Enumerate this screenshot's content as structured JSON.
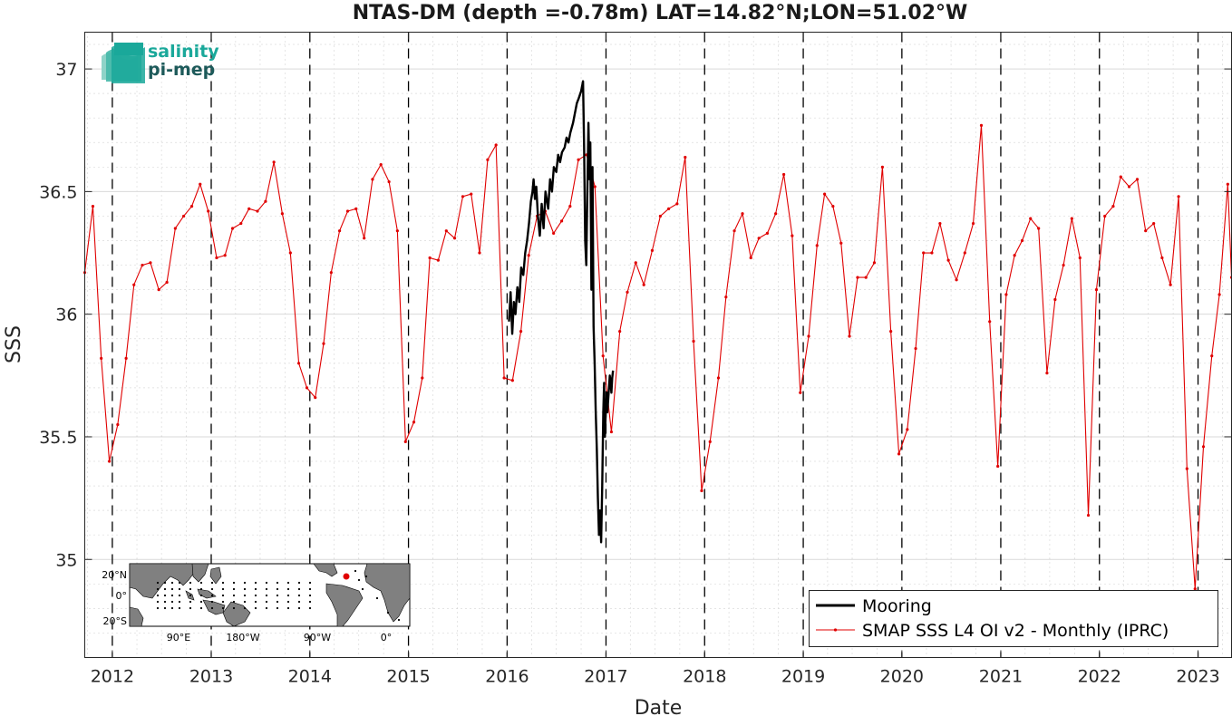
{
  "colors": {
    "mooring": "#000000",
    "smap": "#e00000",
    "logo_teal": "#1aa89a",
    "logo_dark": "#1d5a5a",
    "land": "#808080"
  },
  "logo": {
    "line1": "salinity",
    "line2": "pi-mep"
  },
  "inset_map": {
    "lat_labels": [
      "20°N",
      "0°",
      "20°S"
    ],
    "lon_labels": [
      "90°E",
      "180°W",
      "90°W",
      "0°"
    ],
    "marker_lat": 14.82,
    "marker_lon": -51.02
  },
  "chart_data": {
    "type": "line",
    "title": "NTAS-DM (depth =-0.78m) LAT=14.82°N;LON=51.02°W",
    "xlabel": "Date",
    "ylabel": "SSS",
    "xlim": [
      "2011-09-21",
      "2023-05-05"
    ],
    "ylim": [
      34.6,
      37.15
    ],
    "x_ticks": [
      "2012",
      "2013",
      "2014",
      "2015",
      "2016",
      "2017",
      "2018",
      "2019",
      "2020",
      "2021",
      "2022",
      "2023"
    ],
    "y_ticks": [
      "35",
      "35.5",
      "36",
      "36.5",
      "37"
    ],
    "grid": "on",
    "year_boundaries_dashed": true,
    "legend": {
      "placement": "bottom-right",
      "entries": [
        "Mooring",
        "SMAP SSS L4 OI v2 - Monthly (IPRC)"
      ]
    },
    "series": [
      {
        "name": "Mooring",
        "x": [
          "2016-01-08",
          "2016-01-14",
          "2016-01-20",
          "2016-01-26",
          "2016-02-01",
          "2016-02-08",
          "2016-02-15",
          "2016-02-22",
          "2016-03-01",
          "2016-03-08",
          "2016-03-15",
          "2016-03-22",
          "2016-03-29",
          "2016-04-04",
          "2016-04-08",
          "2016-04-13",
          "2016-04-18",
          "2016-04-24",
          "2016-05-01",
          "2016-05-08",
          "2016-05-15",
          "2016-05-22",
          "2016-06-01",
          "2016-06-08",
          "2016-06-15",
          "2016-06-22",
          "2016-07-01",
          "2016-07-08",
          "2016-07-15",
          "2016-07-22",
          "2016-08-01",
          "2016-08-08",
          "2016-08-15",
          "2016-08-22",
          "2016-09-01",
          "2016-09-08",
          "2016-09-15",
          "2016-09-22",
          "2016-10-01",
          "2016-10-08",
          "2016-10-12",
          "2016-10-16",
          "2016-10-20",
          "2016-10-24",
          "2016-10-28",
          "2016-11-01",
          "2016-11-04",
          "2016-11-08",
          "2016-11-12",
          "2016-11-16",
          "2016-11-20",
          "2016-11-24",
          "2016-11-28",
          "2016-12-02",
          "2016-12-06",
          "2016-12-10",
          "2016-12-14",
          "2016-12-18",
          "2016-12-22",
          "2016-12-25",
          "2016-12-28",
          "2016-12-31",
          "2017-01-02",
          "2017-01-04",
          "2017-01-06",
          "2017-01-09",
          "2017-01-12",
          "2017-01-15",
          "2017-01-18",
          "2017-01-21",
          "2017-01-24",
          "2017-01-27"
        ],
        "y": [
          35.97,
          36.09,
          35.92,
          36.05,
          36.0,
          36.11,
          36.05,
          36.19,
          36.16,
          36.25,
          36.3,
          36.37,
          36.46,
          36.5,
          36.55,
          36.47,
          36.52,
          36.4,
          36.32,
          36.45,
          36.35,
          36.5,
          36.43,
          36.55,
          36.5,
          36.6,
          36.58,
          36.65,
          36.62,
          36.66,
          36.68,
          36.72,
          36.7,
          36.74,
          36.78,
          36.82,
          36.86,
          36.88,
          36.91,
          36.95,
          36.68,
          36.3,
          36.2,
          36.5,
          36.78,
          36.55,
          36.7,
          36.1,
          36.6,
          35.95,
          35.8,
          35.6,
          35.45,
          35.25,
          35.1,
          35.2,
          35.07,
          35.3,
          35.6,
          35.72,
          35.5,
          35.6,
          35.62,
          35.68,
          35.6,
          35.65,
          35.7,
          35.75,
          35.72,
          35.68,
          35.74,
          35.77
        ]
      },
      {
        "name": "SMAP SSS L4 OI v2 - Monthly (IPRC)",
        "x": [
          "2011-09-21",
          "2011-10-21",
          "2011-11-21",
          "2011-12-21",
          "2012-01-21",
          "2012-02-21",
          "2012-03-21",
          "2012-04-21",
          "2012-05-21",
          "2012-06-21",
          "2012-07-21",
          "2012-08-21",
          "2012-09-21",
          "2012-10-21",
          "2012-11-21",
          "2012-12-21",
          "2013-01-21",
          "2013-02-21",
          "2013-03-21",
          "2013-04-21",
          "2013-05-21",
          "2013-06-21",
          "2013-07-21",
          "2013-08-21",
          "2013-09-21",
          "2013-10-21",
          "2013-11-21",
          "2013-12-21",
          "2014-01-21",
          "2014-02-21",
          "2014-03-21",
          "2014-04-21",
          "2014-05-21",
          "2014-06-21",
          "2014-07-21",
          "2014-08-21",
          "2014-09-21",
          "2014-10-21",
          "2014-11-21",
          "2014-12-21",
          "2015-01-21",
          "2015-02-21",
          "2015-03-21",
          "2015-04-21",
          "2015-05-21",
          "2015-06-21",
          "2015-07-21",
          "2015-08-21",
          "2015-09-21",
          "2015-10-21",
          "2015-11-21",
          "2015-12-21",
          "2016-01-21",
          "2016-02-21",
          "2016-03-21",
          "2016-04-21",
          "2016-05-21",
          "2016-06-21",
          "2016-07-21",
          "2016-08-21",
          "2016-09-21",
          "2016-10-21",
          "2016-11-21",
          "2016-12-21",
          "2017-01-21",
          "2017-02-21",
          "2017-03-21",
          "2017-04-21",
          "2017-05-21",
          "2017-06-21",
          "2017-07-21",
          "2017-08-21",
          "2017-09-21",
          "2017-10-21",
          "2017-11-21",
          "2017-12-21",
          "2018-01-21",
          "2018-02-21",
          "2018-03-21",
          "2018-04-21",
          "2018-05-21",
          "2018-06-21",
          "2018-07-21",
          "2018-08-21",
          "2018-09-21",
          "2018-10-21",
          "2018-11-21",
          "2018-12-21",
          "2019-01-21",
          "2019-02-21",
          "2019-03-21",
          "2019-04-21",
          "2019-05-21",
          "2019-06-21",
          "2019-07-21",
          "2019-08-21",
          "2019-09-21",
          "2019-10-21",
          "2019-11-21",
          "2019-12-21",
          "2020-01-21",
          "2020-02-21",
          "2020-03-21",
          "2020-04-21",
          "2020-05-21",
          "2020-06-21",
          "2020-07-21",
          "2020-08-21",
          "2020-09-21",
          "2020-10-21",
          "2020-11-21",
          "2020-12-21",
          "2021-01-21",
          "2021-02-21",
          "2021-03-21",
          "2021-04-21",
          "2021-05-21",
          "2021-06-21",
          "2021-07-21",
          "2021-08-21",
          "2021-09-21",
          "2021-10-21",
          "2021-11-21",
          "2021-12-21",
          "2022-01-21",
          "2022-02-21",
          "2022-03-21",
          "2022-04-21",
          "2022-05-21",
          "2022-06-21",
          "2022-07-21",
          "2022-08-21",
          "2022-09-21",
          "2022-10-21",
          "2022-11-21",
          "2022-12-21",
          "2023-01-21",
          "2023-02-21",
          "2023-03-21",
          "2023-04-21",
          "2023-05-05"
        ],
        "y": [
          36.17,
          36.44,
          35.82,
          35.4,
          35.55,
          35.82,
          36.12,
          36.2,
          36.21,
          36.1,
          36.13,
          36.35,
          36.4,
          36.44,
          36.53,
          36.42,
          36.23,
          36.24,
          36.35,
          36.37,
          36.43,
          36.42,
          36.46,
          36.62,
          36.41,
          36.25,
          35.8,
          35.7,
          35.66,
          35.88,
          36.17,
          36.34,
          36.42,
          36.43,
          36.31,
          36.55,
          36.61,
          36.54,
          36.34,
          35.48,
          35.56,
          35.74,
          36.23,
          36.22,
          36.34,
          36.31,
          36.48,
          36.49,
          36.25,
          36.63,
          36.69,
          35.74,
          35.73,
          35.93,
          36.24,
          36.4,
          36.42,
          36.33,
          36.38,
          36.44,
          36.63,
          36.65,
          36.52,
          35.83,
          35.52,
          35.93,
          36.09,
          36.21,
          36.12,
          36.26,
          36.4,
          36.43,
          36.45,
          36.64,
          35.89,
          35.28,
          35.48,
          35.74,
          36.07,
          36.34,
          36.41,
          36.23,
          36.31,
          36.33,
          36.41,
          36.57,
          36.32,
          35.68,
          35.91,
          36.28,
          36.49,
          36.44,
          36.29,
          35.91,
          36.15,
          36.15,
          36.21,
          36.6,
          35.93,
          35.43,
          35.53,
          35.86,
          36.25,
          36.25,
          36.37,
          36.22,
          36.14,
          36.25,
          36.37,
          36.77,
          35.97,
          35.38,
          36.08,
          36.24,
          36.3,
          36.39,
          36.35,
          35.76,
          36.06,
          36.2,
          36.39,
          36.23,
          35.18,
          36.1,
          36.4,
          36.44,
          36.56,
          36.52,
          36.55,
          36.34,
          36.37,
          36.23,
          36.12,
          36.48,
          35.37,
          34.88,
          35.46,
          35.83,
          36.08,
          36.53,
          36.15
        ]
      }
    ]
  }
}
